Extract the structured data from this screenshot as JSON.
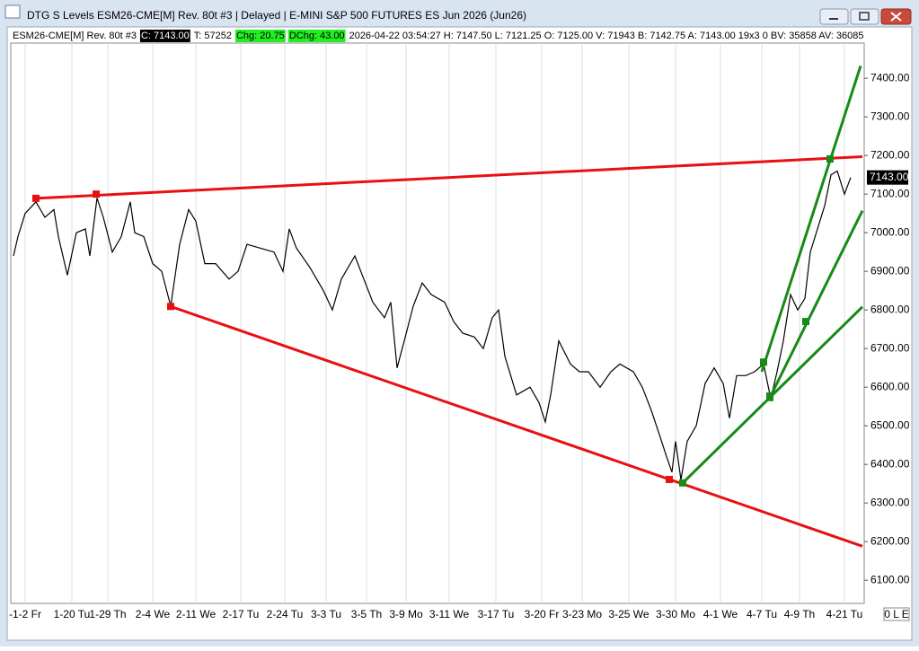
{
  "window": {
    "title": "DTG S Levels ESM26-CME[M]  Rev. 80t #3 | Delayed | E-MINI S&P 500 FUTURES ES Jun 2026 (Jun26)",
    "info": [
      {
        "text": "ESM26-CME[M]  Rev. 80t #3",
        "style": "plain"
      },
      {
        "text": "C: 7143.00",
        "style": "dark"
      },
      {
        "text": "T: 57252",
        "style": "plain"
      },
      {
        "text": "Chg: 20.75",
        "style": "green"
      },
      {
        "text": "DChg: 43.00",
        "style": "green"
      },
      {
        "text": "2026-04-22 03:54:27 H: 7147.50 L: 7121.25 O: 7125.00 V: 71943 B: 7142.75 A: 7143.00 19x3 0 BV: 35858 AV: 36085",
        "style": "plain"
      }
    ],
    "status": "0 L E"
  },
  "chart_data": {
    "type": "line",
    "xlim": [
      12,
      962
    ],
    "ylim": [
      6040,
      7498
    ],
    "xticks": [
      {
        "value": 28,
        "label": "-1-2 Fr"
      },
      {
        "value": 80,
        "label": "1-20 Tu"
      },
      {
        "value": 120,
        "label": "1-29 Th"
      },
      {
        "value": 170,
        "label": "2-4 We"
      },
      {
        "value": 218,
        "label": "2-11 We"
      },
      {
        "value": 268,
        "label": "2-17 Tu"
      },
      {
        "value": 317,
        "label": "2-24 Tu"
      },
      {
        "value": 363,
        "label": "3-3 Tu"
      },
      {
        "value": 408,
        "label": "3-5 Th"
      },
      {
        "value": 452,
        "label": "3-9 Mo"
      },
      {
        "value": 500,
        "label": "3-11 We"
      },
      {
        "value": 552,
        "label": "3-17 Tu"
      },
      {
        "value": 603,
        "label": "3-20 Fr"
      },
      {
        "value": 648,
        "label": "3-23 Mo"
      },
      {
        "value": 700,
        "label": "3-25 We"
      },
      {
        "value": 752,
        "label": "3-30 Mo"
      },
      {
        "value": 802,
        "label": "4-1 We"
      },
      {
        "value": 848,
        "label": "4-7 Tu"
      },
      {
        "value": 890,
        "label": "4-9 Th"
      },
      {
        "value": 940,
        "label": "4-21 Tu"
      }
    ],
    "yticks": [
      {
        "value": 6100,
        "label": "6100.00"
      },
      {
        "value": 6200,
        "label": "6200.00"
      },
      {
        "value": 6300,
        "label": "6300.00"
      },
      {
        "value": 6400,
        "label": "6400.00"
      },
      {
        "value": 6500,
        "label": "6500.00"
      },
      {
        "value": 6600,
        "label": "6600.00"
      },
      {
        "value": 6700,
        "label": "6700.00"
      },
      {
        "value": 6800,
        "label": "6800.00"
      },
      {
        "value": 6900,
        "label": "6900.00"
      },
      {
        "value": 7000,
        "label": "7000.00"
      },
      {
        "value": 7100,
        "label": "7100.00"
      },
      {
        "value": 7200,
        "label": "7200.00"
      },
      {
        "value": 7300,
        "label": "7300.00"
      },
      {
        "value": 7400,
        "label": "7400.00"
      }
    ],
    "last_price": {
      "value": 7143,
      "label": "7143.00"
    },
    "series": [
      {
        "color": "#000000",
        "x": [
          15,
          20,
          28,
          40,
          50,
          60,
          65,
          75,
          85,
          95,
          100,
          108,
          115,
          125,
          135,
          145,
          150,
          160,
          170,
          180,
          190,
          200,
          210,
          218,
          228,
          240,
          255,
          265,
          275,
          290,
          305,
          315,
          322,
          330,
          345,
          360,
          370,
          380,
          395,
          405,
          415,
          428,
          435,
          442,
          450,
          460,
          470,
          480,
          495,
          505,
          515,
          528,
          538,
          548,
          555,
          562,
          575,
          590,
          600,
          607,
          613,
          622,
          635,
          645,
          655,
          668,
          680,
          690,
          705,
          715,
          725,
          735,
          742,
          748,
          752,
          758,
          765,
          775,
          785,
          795,
          805,
          812,
          820,
          830,
          840,
          850,
          858,
          865,
          872,
          880,
          888,
          896,
          902,
          910,
          918,
          925,
          932,
          940,
          947
        ],
        "values": [
          6940,
          6990,
          7050,
          7080,
          7040,
          7060,
          6990,
          6890,
          7000,
          7010,
          6940,
          7090,
          7040,
          6950,
          6990,
          7080,
          7000,
          6990,
          6920,
          6900,
          6810,
          6970,
          7060,
          7030,
          6920,
          6920,
          6880,
          6900,
          6970,
          6960,
          6950,
          6900,
          7010,
          6960,
          6910,
          6850,
          6800,
          6880,
          6940,
          6880,
          6820,
          6780,
          6820,
          6650,
          6720,
          6810,
          6870,
          6840,
          6820,
          6770,
          6740,
          6730,
          6700,
          6780,
          6800,
          6680,
          6580,
          6600,
          6560,
          6510,
          6580,
          6720,
          6660,
          6640,
          6640,
          6600,
          6640,
          6660,
          6640,
          6600,
          6540,
          6470,
          6420,
          6380,
          6460,
          6360,
          6460,
          6500,
          6610,
          6650,
          6610,
          6520,
          6630,
          6630,
          6640,
          6660,
          6570,
          6640,
          6720,
          6840,
          6800,
          6830,
          6950,
          7010,
          7070,
          7150,
          7160,
          7100,
          7143
        ]
      }
    ],
    "trendlines": [
      {
        "color": "#e81010",
        "x": [
          40,
          960
        ],
        "values": [
          7089,
          7197
        ],
        "anchor_x": [
          40,
          107
        ],
        "anchor_values": [
          7089,
          7100
        ]
      },
      {
        "color": "#e81010",
        "x": [
          190,
          960
        ],
        "values": [
          6809,
          6188
        ],
        "anchor_x": [
          190,
          745
        ],
        "anchor_values": [
          6809,
          6361
        ]
      },
      {
        "color": "#178a17",
        "x": [
          848,
          958
        ],
        "values": [
          6640,
          7432
        ],
        "anchor_x": [
          850,
          924
        ],
        "anchor_values": [
          6665,
          7191
        ]
      },
      {
        "color": "#178a17",
        "x": [
          857,
          960
        ],
        "values": [
          6573,
          7057
        ],
        "anchor_x": [
          857,
          897
        ],
        "anchor_values": [
          6573,
          6770
        ]
      },
      {
        "color": "#178a17",
        "x": [
          760,
          960
        ],
        "values": [
          6352,
          6808
        ],
        "anchor_x": [
          760,
          857
        ],
        "anchor_values": [
          6352,
          6577
        ]
      }
    ]
  }
}
